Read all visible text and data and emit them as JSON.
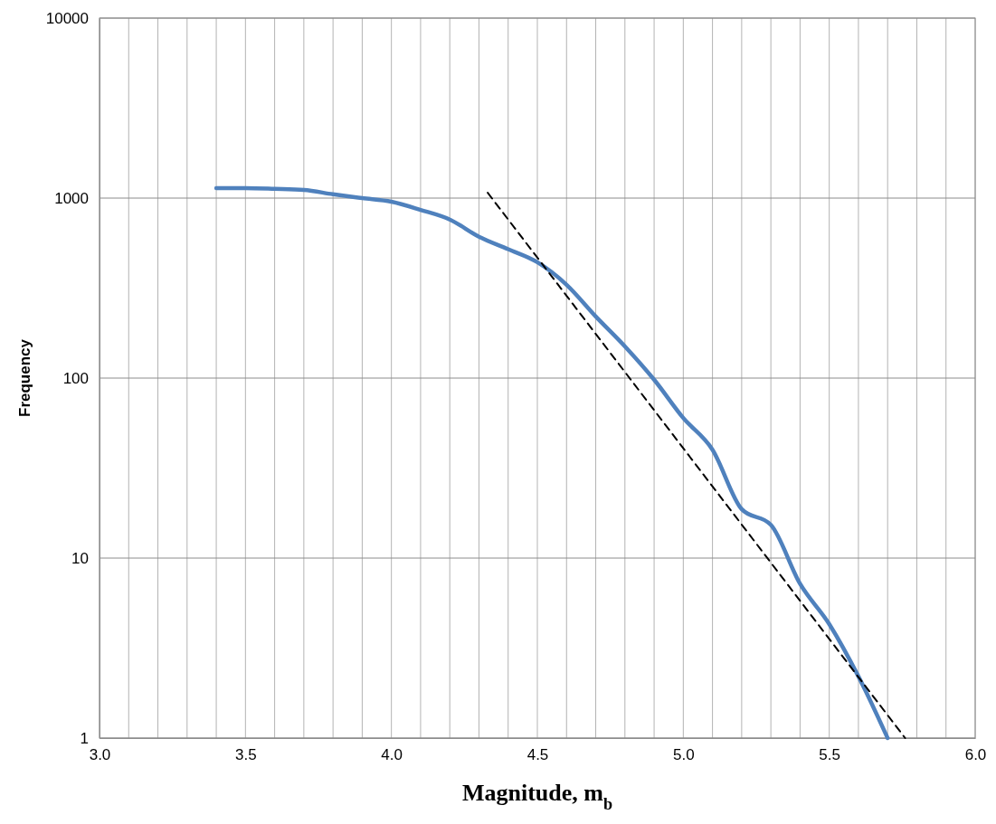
{
  "chart_data": {
    "type": "line",
    "xlabel": "Magnitude, m$_{b}$",
    "ylabel": "Frequency",
    "log": "y",
    "grid": true,
    "xlim": [
      3.0,
      6.0
    ],
    "xticks": [
      {
        "value": 3.0,
        "label": "3.0"
      },
      {
        "value": 3.1,
        "label": null
      },
      {
        "value": 3.2,
        "label": null
      },
      {
        "value": 3.3,
        "label": null
      },
      {
        "value": 3.4,
        "label": null
      },
      {
        "value": 3.5,
        "label": "3.5"
      },
      {
        "value": 3.6,
        "label": null
      },
      {
        "value": 3.7,
        "label": null
      },
      {
        "value": 3.8,
        "label": null
      },
      {
        "value": 3.9,
        "label": null
      },
      {
        "value": 4.0,
        "label": "4.0"
      },
      {
        "value": 4.1,
        "label": null
      },
      {
        "value": 4.2,
        "label": null
      },
      {
        "value": 4.3,
        "label": null
      },
      {
        "value": 4.4,
        "label": null
      },
      {
        "value": 4.5,
        "label": "4.5"
      },
      {
        "value": 4.6,
        "label": null
      },
      {
        "value": 4.7,
        "label": null
      },
      {
        "value": 4.8,
        "label": null
      },
      {
        "value": 4.9,
        "label": null
      },
      {
        "value": 5.0,
        "label": "5.0"
      },
      {
        "value": 5.1,
        "label": null
      },
      {
        "value": 5.2,
        "label": null
      },
      {
        "value": 5.3,
        "label": null
      },
      {
        "value": 5.4,
        "label": null
      },
      {
        "value": 5.5,
        "label": "5.5"
      },
      {
        "value": 5.6,
        "label": null
      },
      {
        "value": 5.7,
        "label": null
      },
      {
        "value": 5.8,
        "label": null
      },
      {
        "value": 5.9,
        "label": null
      },
      {
        "value": 6.0,
        "label": "6.0"
      }
    ],
    "ylim": [
      1,
      10000
    ],
    "yticks": [
      1,
      10,
      100,
      1000,
      10000
    ],
    "series": [
      {
        "color": "#4f81bd",
        "line_style": "solid",
        "x": [
          3.4,
          3.5,
          3.6,
          3.7,
          3.8,
          3.9,
          4.0,
          4.1,
          4.2,
          4.3,
          4.4,
          4.5,
          4.6,
          4.7,
          4.8,
          4.9,
          5.0,
          5.1,
          5.2,
          5.3,
          5.4,
          5.5,
          5.6,
          5.7
        ],
        "values": [
          1135,
          1135,
          1125,
          1110,
          1050,
          1000,
          955,
          860,
          760,
          610,
          520,
          440,
          330,
          220,
          150,
          98,
          60,
          40,
          18.7,
          15.3,
          7.2,
          4.3,
          2.2,
          1
        ]
      },
      {
        "color": "#000000",
        "line_style": "dashed",
        "x": [
          4.33,
          5.76
        ],
        "values": [
          1070,
          1
        ]
      }
    ]
  }
}
